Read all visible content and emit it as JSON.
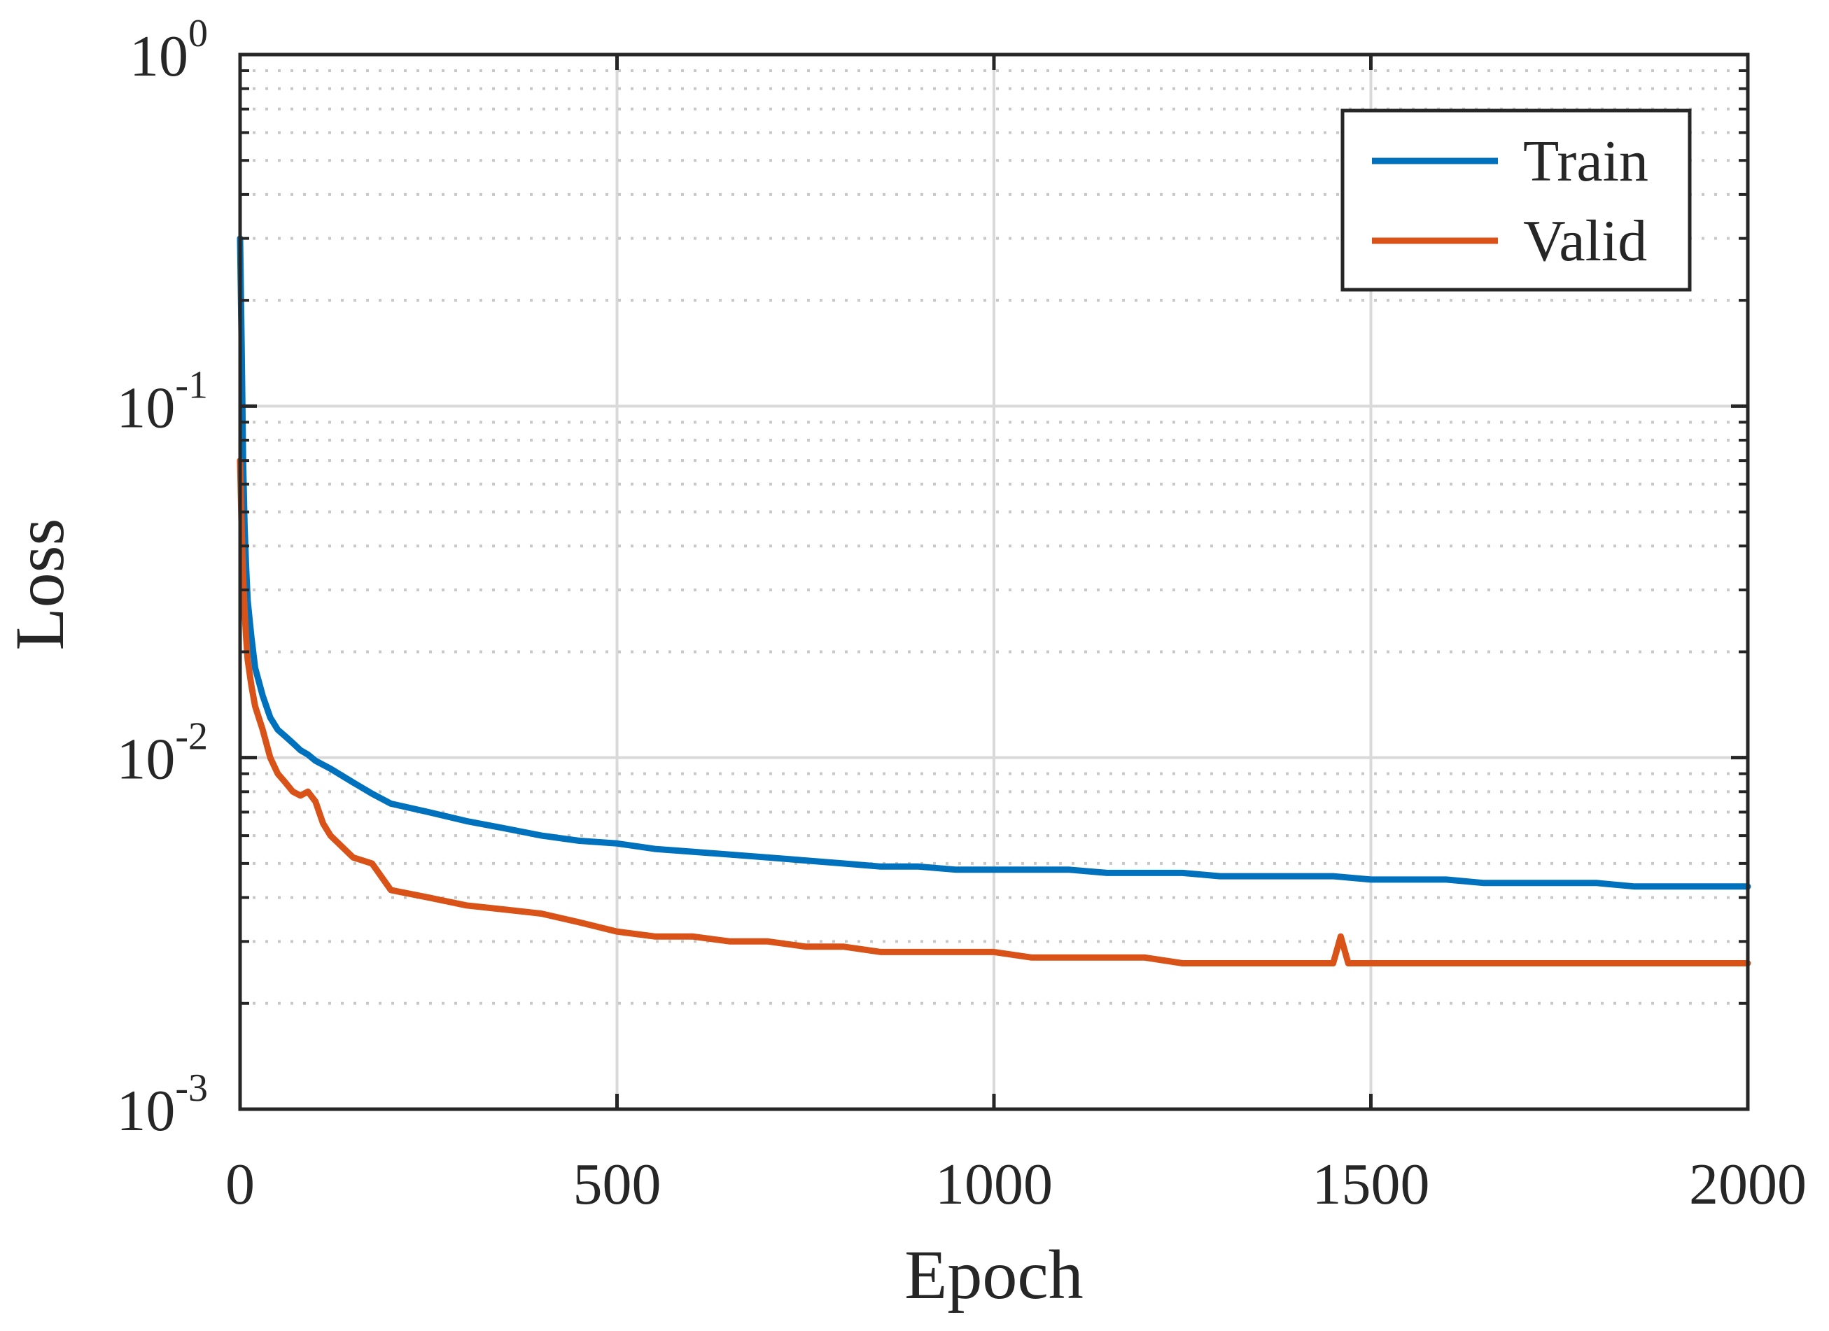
{
  "chart_data": {
    "type": "line",
    "title": "",
    "xlabel": "Epoch",
    "ylabel": "Loss",
    "xlim": [
      0,
      2000
    ],
    "ylim": [
      0.001,
      1
    ],
    "yscale": "log",
    "grid": true,
    "minor_grid": true,
    "legend_position": "top-right",
    "x_ticks": [
      {
        "value": 0,
        "label": "0"
      },
      {
        "value": 500,
        "label": "500"
      },
      {
        "value": 1000,
        "label": "1000"
      },
      {
        "value": 1500,
        "label": "1500"
      },
      {
        "value": 2000,
        "label": "2000"
      }
    ],
    "y_ticks": [
      {
        "value": 1,
        "base": "10",
        "exp": "0"
      },
      {
        "value": 0.1,
        "base": "10",
        "exp": "-1"
      },
      {
        "value": 0.01,
        "base": "10",
        "exp": "-2"
      },
      {
        "value": 0.001,
        "base": "10",
        "exp": "-3"
      }
    ],
    "series": [
      {
        "name": "Train",
        "color": "#0072BD",
        "x": [
          0,
          2,
          4,
          6,
          8,
          10,
          15,
          20,
          30,
          40,
          50,
          60,
          70,
          80,
          90,
          100,
          120,
          150,
          175,
          200,
          250,
          300,
          350,
          400,
          450,
          500,
          550,
          600,
          650,
          700,
          750,
          800,
          850,
          900,
          950,
          1000,
          1050,
          1100,
          1150,
          1200,
          1250,
          1300,
          1350,
          1400,
          1450,
          1500,
          1550,
          1600,
          1650,
          1700,
          1750,
          1800,
          1850,
          1900,
          1950,
          2000
        ],
        "y": [
          0.3,
          0.15,
          0.07,
          0.045,
          0.035,
          0.028,
          0.022,
          0.018,
          0.015,
          0.013,
          0.012,
          0.0115,
          0.011,
          0.0105,
          0.0102,
          0.0098,
          0.0093,
          0.0085,
          0.0079,
          0.0074,
          0.007,
          0.0066,
          0.0063,
          0.006,
          0.0058,
          0.0057,
          0.0055,
          0.0054,
          0.0053,
          0.0052,
          0.0051,
          0.005,
          0.0049,
          0.0049,
          0.0048,
          0.0048,
          0.0048,
          0.0048,
          0.0047,
          0.0047,
          0.0047,
          0.0046,
          0.0046,
          0.0046,
          0.0046,
          0.0045,
          0.0045,
          0.0045,
          0.0044,
          0.0044,
          0.0044,
          0.0044,
          0.0043,
          0.0043,
          0.0043,
          0.0043
        ]
      },
      {
        "name": "Valid",
        "color": "#D95319",
        "x": [
          0,
          2,
          4,
          6,
          8,
          10,
          15,
          20,
          30,
          40,
          50,
          60,
          70,
          80,
          90,
          100,
          110,
          120,
          150,
          175,
          200,
          250,
          300,
          350,
          400,
          450,
          500,
          550,
          600,
          650,
          700,
          750,
          800,
          850,
          900,
          950,
          1000,
          1050,
          1100,
          1150,
          1200,
          1250,
          1300,
          1350,
          1400,
          1450,
          1460,
          1470,
          1500,
          1550,
          1600,
          1650,
          1700,
          1750,
          1800,
          1850,
          1900,
          1950,
          2000
        ],
        "y": [
          0.07,
          0.045,
          0.033,
          0.026,
          0.022,
          0.019,
          0.016,
          0.014,
          0.012,
          0.01,
          0.009,
          0.0085,
          0.008,
          0.0078,
          0.008,
          0.0075,
          0.0065,
          0.006,
          0.0052,
          0.005,
          0.0042,
          0.004,
          0.0038,
          0.0037,
          0.0036,
          0.0034,
          0.0032,
          0.0031,
          0.0031,
          0.003,
          0.003,
          0.0029,
          0.0029,
          0.0028,
          0.0028,
          0.0028,
          0.0028,
          0.0027,
          0.0027,
          0.0027,
          0.0027,
          0.0026,
          0.0026,
          0.0026,
          0.0026,
          0.0026,
          0.0031,
          0.0026,
          0.0026,
          0.0026,
          0.0026,
          0.0026,
          0.0026,
          0.0026,
          0.0026,
          0.0026,
          0.0026,
          0.0026,
          0.0026
        ]
      }
    ]
  }
}
